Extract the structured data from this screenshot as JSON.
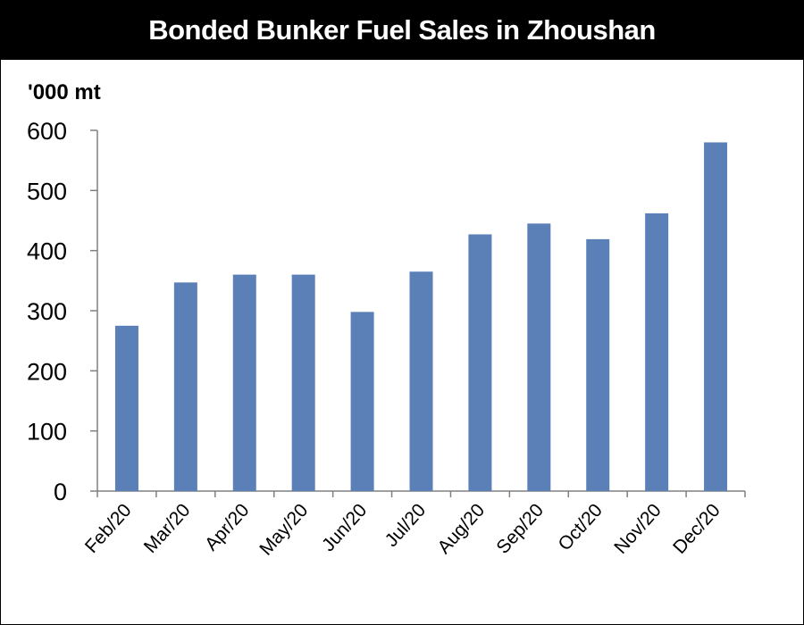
{
  "chart_data": {
    "type": "bar",
    "title": "Bonded Bunker Fuel Sales in Zhoushan",
    "ylabel": "'000 mt",
    "xlabel": "",
    "categories": [
      "Feb/20",
      "Mar/20",
      "Apr/20",
      "May/20",
      "Jun/20",
      "Jul/20",
      "Aug/20",
      "Sep/20",
      "Oct/20",
      "Nov/20",
      "Dec/20"
    ],
    "values": [
      275,
      347,
      360,
      360,
      298,
      365,
      427,
      445,
      419,
      462,
      580
    ],
    "ylim": [
      0,
      600
    ],
    "yticks": [
      0,
      100,
      200,
      300,
      400,
      500,
      600
    ],
    "grid": false,
    "legend": "none"
  },
  "colors": {
    "bar": "#5b80b8",
    "title_bg": "#000000",
    "title_fg": "#ffffff"
  }
}
